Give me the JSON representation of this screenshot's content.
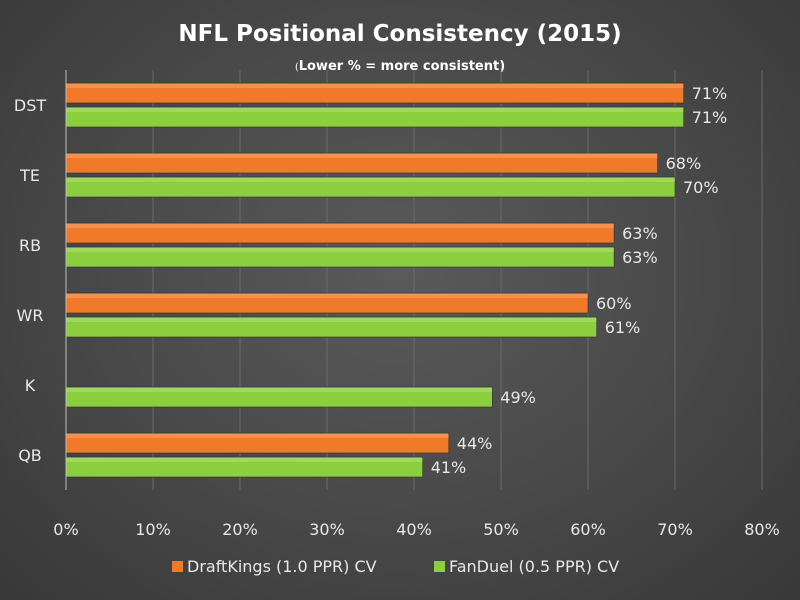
{
  "chart_data": {
    "type": "bar",
    "orientation": "horizontal",
    "title": "NFL Positional Consistency (2015)",
    "subtitle_prefix": "(",
    "subtitle": "Lower % = more consistent)",
    "categories": [
      "DST",
      "TE",
      "RB",
      "WR",
      "K",
      "QB"
    ],
    "series": [
      {
        "name": "DraftKings (1.0 PPR) CV",
        "color": "#f07a2a",
        "values": [
          71,
          68,
          63,
          60,
          null,
          44
        ]
      },
      {
        "name": "FanDuel (0.5 PPR) CV",
        "color": "#8ccf3e",
        "values": [
          71,
          70,
          63,
          61,
          49,
          41
        ]
      }
    ],
    "xlim": [
      0,
      80
    ],
    "xticks": [
      0,
      10,
      20,
      30,
      40,
      50,
      60,
      70,
      80
    ],
    "tick_suffix": "%",
    "grid": true,
    "legend": "bottom"
  }
}
